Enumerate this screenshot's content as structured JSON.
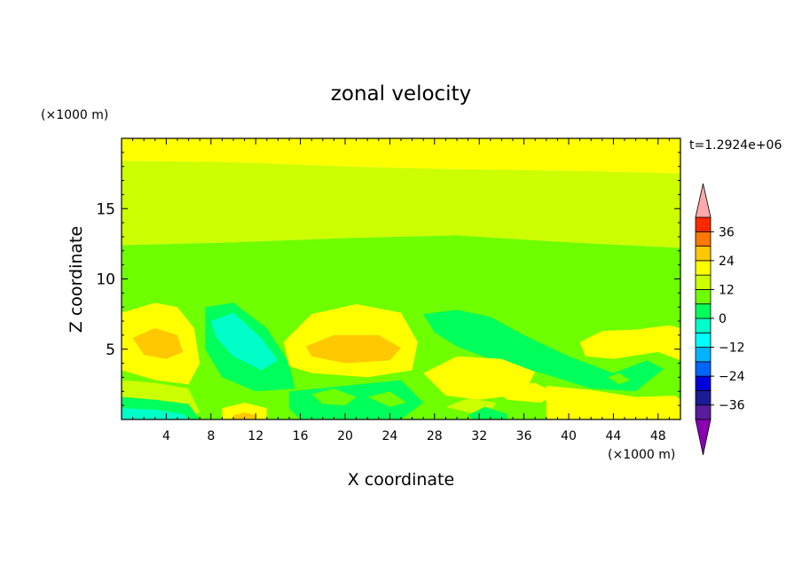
{
  "chart_data": {
    "type": "heatmap",
    "title": "zonal velocity",
    "xlabel": "X coordinate",
    "ylabel": "Z coordinate",
    "x_unit_label": "(×1000 m)",
    "y_unit_label": "(×1000 m)",
    "time_label": "t=1.2924e+06",
    "xlim": [
      0,
      50
    ],
    "ylim": [
      0,
      20
    ],
    "x_ticks": [
      4,
      8,
      12,
      16,
      20,
      24,
      28,
      32,
      36,
      40,
      44,
      48
    ],
    "y_ticks": [
      5,
      10,
      15
    ],
    "grid": false,
    "colorbar": {
      "extend": "both",
      "boundaries": [
        -42,
        -36,
        -30,
        -24,
        -18,
        -12,
        -6,
        0,
        6,
        12,
        18,
        24,
        30,
        36,
        42
      ],
      "tick_values": [
        36,
        24,
        12,
        0,
        -12,
        -24,
        -36
      ],
      "tick_labels": [
        "36",
        "24",
        "12",
        "0",
        "−12",
        "−24",
        "−36"
      ],
      "colors": [
        "#5a1c9c",
        "#1c1c96",
        "#0000dc",
        "#0064ff",
        "#00b4ff",
        "#00ffff",
        "#00ffc8",
        "#00ff5a",
        "#6eff00",
        "#ccff00",
        "#ffff00",
        "#ffc800",
        "#ff7800",
        "#ff2800"
      ],
      "under_color": "#8c00b4",
      "over_color": "#ffaaaa"
    },
    "regions": [
      {
        "level": 3,
        "points": [
          [
            0,
            20
          ],
          [
            50,
            20
          ],
          [
            50,
            17.5
          ],
          [
            40,
            17.7
          ],
          [
            30,
            17.8
          ],
          [
            20,
            18
          ],
          [
            10,
            18.3
          ],
          [
            0,
            18.4
          ]
        ]
      },
      {
        "level": 2,
        "points": [
          [
            0,
            18.4
          ],
          [
            10,
            18.3
          ],
          [
            20,
            18
          ],
          [
            30,
            17.8
          ],
          [
            40,
            17.7
          ],
          [
            50,
            17.5
          ],
          [
            50,
            12.2
          ],
          [
            40,
            12.6
          ],
          [
            30,
            13.1
          ],
          [
            20,
            12.9
          ],
          [
            10,
            12.6
          ],
          [
            0,
            12.4
          ]
        ]
      },
      {
        "level": 1,
        "points": [
          [
            0,
            12.4
          ],
          [
            10,
            12.6
          ],
          [
            20,
            12.9
          ],
          [
            30,
            13.1
          ],
          [
            40,
            12.6
          ],
          [
            50,
            12.2
          ],
          [
            50,
            0
          ],
          [
            0,
            0
          ]
        ]
      },
      {
        "level": 3,
        "points": [
          [
            29,
            19.3
          ],
          [
            33,
            19.7
          ],
          [
            32,
            20
          ],
          [
            29,
            20
          ]
        ]
      },
      {
        "level": 2,
        "points": [
          [
            24,
            17.4
          ],
          [
            27,
            17.6
          ],
          [
            26,
            17.1
          ]
        ]
      },
      {
        "level": 3,
        "points": [
          [
            0,
            7.6
          ],
          [
            3,
            8.3
          ],
          [
            5,
            8
          ],
          [
            6.5,
            6.5
          ],
          [
            7,
            4
          ],
          [
            6,
            2.5
          ],
          [
            3,
            2.8
          ],
          [
            0,
            3.5
          ]
        ]
      },
      {
        "level": 4,
        "points": [
          [
            1,
            5.8
          ],
          [
            3,
            6.5
          ],
          [
            5,
            6
          ],
          [
            5.5,
            4.8
          ],
          [
            4,
            4.3
          ],
          [
            2,
            4.6
          ]
        ]
      },
      {
        "level": 2,
        "points": [
          [
            0,
            2.8
          ],
          [
            3,
            2.6
          ],
          [
            6,
            2.2
          ],
          [
            7,
            0.5
          ],
          [
            5,
            0
          ],
          [
            0,
            0
          ]
        ]
      },
      {
        "level": 0,
        "points": [
          [
            0,
            1.6
          ],
          [
            3,
            1.4
          ],
          [
            6,
            1.1
          ],
          [
            7,
            0
          ],
          [
            0,
            0
          ]
        ]
      },
      {
        "level": -1,
        "points": [
          [
            0,
            0.8
          ],
          [
            3,
            0.7
          ],
          [
            5.5,
            0.4
          ],
          [
            6,
            0
          ],
          [
            0,
            0
          ]
        ]
      },
      {
        "level": 0,
        "points": [
          [
            7.5,
            8
          ],
          [
            10,
            8.3
          ],
          [
            13,
            6.5
          ],
          [
            15,
            4
          ],
          [
            15.5,
            2.2
          ],
          [
            12,
            2
          ],
          [
            9,
            3
          ],
          [
            7.5,
            5
          ]
        ]
      },
      {
        "level": -1,
        "points": [
          [
            8,
            7
          ],
          [
            10,
            7.6
          ],
          [
            12.5,
            5.8
          ],
          [
            14,
            4.2
          ],
          [
            12.5,
            3.5
          ],
          [
            10,
            4.5
          ],
          [
            8.5,
            5.8
          ]
        ]
      },
      {
        "level": 3,
        "points": [
          [
            9,
            0.8
          ],
          [
            11,
            1.2
          ],
          [
            13,
            0.8
          ],
          [
            13,
            0
          ],
          [
            9,
            0
          ]
        ]
      },
      {
        "level": 4,
        "points": [
          [
            10,
            0.3
          ],
          [
            11,
            0.5
          ],
          [
            12,
            0.3
          ],
          [
            12,
            0
          ],
          [
            10,
            0
          ]
        ]
      },
      {
        "level": 3,
        "points": [
          [
            14.5,
            5.5
          ],
          [
            17,
            7.5
          ],
          [
            21,
            8.2
          ],
          [
            25,
            7.6
          ],
          [
            26.5,
            5.5
          ],
          [
            26,
            3.5
          ],
          [
            22,
            3
          ],
          [
            17,
            3.3
          ],
          [
            15,
            3.8
          ]
        ]
      },
      {
        "level": 4,
        "points": [
          [
            16.5,
            5.2
          ],
          [
            19,
            6
          ],
          [
            23,
            6
          ],
          [
            25,
            5.1
          ],
          [
            24,
            4.2
          ],
          [
            20,
            4
          ],
          [
            17,
            4.5
          ]
        ]
      },
      {
        "level": 0,
        "points": [
          [
            15,
            2
          ],
          [
            20,
            2.4
          ],
          [
            25,
            2.8
          ],
          [
            27,
            1.2
          ],
          [
            25,
            0
          ],
          [
            16,
            0
          ],
          [
            15,
            0.8
          ]
        ]
      },
      {
        "level": 1,
        "points": [
          [
            17,
            1.8
          ],
          [
            19,
            2.2
          ],
          [
            21,
            1.6
          ],
          [
            20,
            1
          ],
          [
            18,
            1.1
          ]
        ]
      },
      {
        "level": 1,
        "points": [
          [
            22,
            1.6
          ],
          [
            24,
            2
          ],
          [
            25.5,
            1.2
          ],
          [
            24,
            0.9
          ]
        ]
      },
      {
        "level": 0,
        "points": [
          [
            27,
            7.5
          ],
          [
            30,
            7.8
          ],
          [
            33,
            7.3
          ],
          [
            36,
            6
          ],
          [
            40,
            4.5
          ],
          [
            44,
            3.3
          ],
          [
            47,
            4.2
          ],
          [
            48.5,
            3.6
          ],
          [
            46,
            2
          ],
          [
            42,
            2.2
          ],
          [
            38,
            3.2
          ],
          [
            34,
            4
          ],
          [
            30,
            5.2
          ],
          [
            28,
            6.2
          ]
        ]
      },
      {
        "level": 1,
        "points": [
          [
            43.5,
            3
          ],
          [
            44.5,
            3.3
          ],
          [
            45.5,
            2.8
          ],
          [
            44.5,
            2.5
          ]
        ]
      },
      {
        "level": 3,
        "points": [
          [
            27,
            3.3
          ],
          [
            30,
            4.5
          ],
          [
            34,
            4.3
          ],
          [
            37,
            3.4
          ],
          [
            36,
            1.8
          ],
          [
            32,
            1.4
          ],
          [
            29,
            1.7
          ]
        ]
      },
      {
        "level": 2,
        "points": [
          [
            29,
            0.9
          ],
          [
            31,
            1.5
          ],
          [
            33.5,
            1.2
          ],
          [
            33,
            0.5
          ],
          [
            31,
            0.5
          ]
        ]
      },
      {
        "level": 0,
        "points": [
          [
            31,
            0.3
          ],
          [
            32.5,
            0.9
          ],
          [
            34.5,
            0.4
          ],
          [
            34.5,
            0
          ],
          [
            31.5,
            0
          ]
        ]
      },
      {
        "level": 3,
        "points": [
          [
            41,
            5.5
          ],
          [
            43,
            6.3
          ],
          [
            46,
            6.4
          ],
          [
            49,
            6.7
          ],
          [
            50,
            6.5
          ],
          [
            50,
            4.2
          ],
          [
            48,
            4.8
          ],
          [
            44,
            4.3
          ],
          [
            41.5,
            4.5
          ]
        ]
      },
      {
        "level": 3,
        "points": [
          [
            38,
            2.4
          ],
          [
            42,
            2.1
          ],
          [
            46,
            1.6
          ],
          [
            49.5,
            1.7
          ],
          [
            50,
            1.4
          ],
          [
            50,
            0
          ],
          [
            38,
            0
          ]
        ]
      },
      {
        "level": 3,
        "points": [
          [
            33,
            2.3
          ],
          [
            37,
            2.6
          ],
          [
            39,
            1.8
          ],
          [
            37.5,
            1.2
          ],
          [
            34.5,
            1.4
          ]
        ]
      }
    ]
  }
}
